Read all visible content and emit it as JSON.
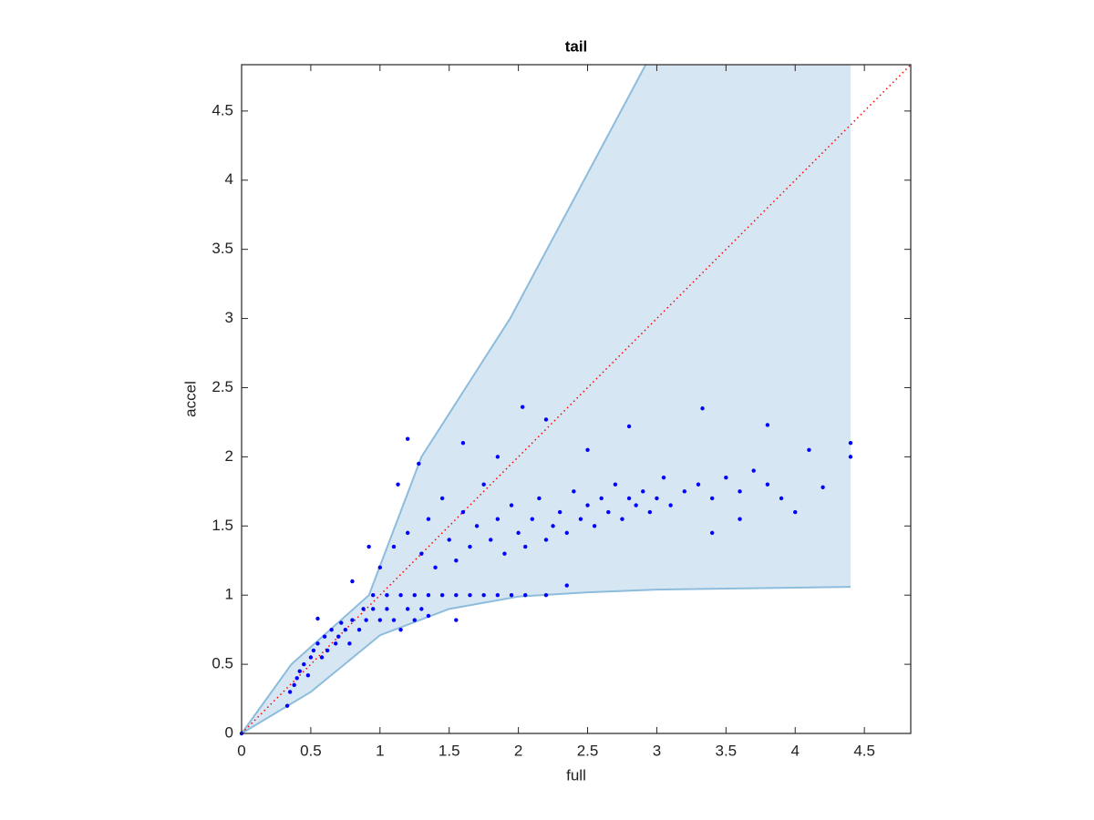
{
  "chart_data": {
    "type": "scatter",
    "title": "tail",
    "x_label": "full",
    "y_label": "accel",
    "xlim": [
      0,
      4.835
    ],
    "ylim": [
      0,
      4.835
    ],
    "xticks": [
      0,
      0.5,
      1,
      1.5,
      2,
      2.5,
      3,
      3.5,
      4,
      4.5
    ],
    "yticks": [
      0,
      0.5,
      1,
      1.5,
      2,
      2.5,
      3,
      3.5,
      4,
      4.5
    ],
    "color": "#0000ff",
    "x": [
      0,
      0.33,
      0.35,
      0.38,
      0.4,
      0.42,
      0.45,
      0.48,
      0.5,
      0.52,
      0.55,
      0.58,
      0.6,
      0.62,
      0.65,
      0.68,
      0.7,
      0.72,
      0.75,
      0.78,
      0.8,
      0.85,
      0.88,
      0.9,
      0.95,
      1.0,
      1.05,
      1.1,
      1.15,
      1.2,
      1.25,
      1.3,
      0.95,
      1.05,
      1.15,
      1.25,
      1.35,
      1.45,
      1.55,
      1.65,
      1.75,
      1.85,
      1.95,
      2.05,
      2.2,
      2.35,
      1.0,
      1.1,
      1.2,
      1.3,
      1.35,
      1.4,
      1.45,
      1.5,
      1.55,
      1.6,
      1.65,
      1.7,
      1.75,
      1.8,
      1.85,
      1.9,
      1.95,
      2.0,
      2.05,
      2.1,
      2.15,
      2.2,
      2.25,
      2.3,
      2.35,
      2.4,
      2.45,
      2.5,
      2.55,
      2.6,
      2.65,
      2.7,
      2.75,
      2.8,
      2.85,
      2.9,
      2.95,
      3.0,
      3.05,
      3.1,
      3.2,
      3.3,
      3.4,
      3.5,
      3.6,
      3.7,
      3.8,
      3.9,
      4.0,
      4.1,
      4.2,
      4.4,
      4.4,
      1.2,
      1.28,
      1.13,
      2.03,
      2.2,
      3.33,
      3.8,
      2.8,
      1.6,
      1.85,
      2.5,
      0.92,
      0.8,
      0.55,
      3.6,
      3.4,
      1.35,
      1.55
    ],
    "values": [
      0,
      0.2,
      0.3,
      0.35,
      0.4,
      0.45,
      0.5,
      0.42,
      0.55,
      0.6,
      0.65,
      0.55,
      0.7,
      0.6,
      0.75,
      0.65,
      0.7,
      0.8,
      0.75,
      0.65,
      0.82,
      0.75,
      0.9,
      0.82,
      0.9,
      0.82,
      0.9,
      0.82,
      0.75,
      0.9,
      0.82,
      0.9,
      1,
      1,
      1,
      1,
      1,
      1,
      1,
      1,
      1,
      1,
      1,
      1,
      1,
      1.07,
      1.2,
      1.35,
      1.45,
      1.3,
      1.55,
      1.2,
      1.7,
      1.4,
      1.25,
      1.6,
      1.35,
      1.5,
      1.8,
      1.4,
      1.55,
      1.3,
      1.65,
      1.45,
      1.35,
      1.55,
      1.7,
      1.4,
      1.5,
      1.6,
      1.45,
      1.75,
      1.55,
      1.65,
      1.5,
      1.7,
      1.6,
      1.8,
      1.55,
      1.7,
      1.65,
      1.75,
      1.6,
      1.7,
      1.85,
      1.65,
      1.75,
      1.8,
      1.7,
      1.85,
      1.75,
      1.9,
      1.8,
      1.7,
      1.6,
      2.05,
      1.78,
      2.1,
      2.0,
      2.13,
      1.95,
      1.8,
      2.36,
      2.27,
      2.35,
      2.23,
      2.22,
      2.1,
      2.0,
      2.05,
      1.35,
      1.1,
      0.83,
      1.55,
      1.45,
      0.85,
      0.82
    ],
    "band": {
      "color": "#d6e7f3",
      "edge_color": "#8dbcdc",
      "upper_x": [
        0,
        0.36,
        0.92,
        1.3,
        1.94,
        2.92,
        4.4
      ],
      "upper_y": [
        0,
        0.5,
        1.0,
        2.0,
        3.0,
        4.835,
        4.835
      ],
      "lower_x": [
        0,
        0.5,
        1.0,
        1.5,
        2.0,
        2.5,
        3.0,
        4.4
      ],
      "lower_y": [
        0,
        0.3,
        0.71,
        0.9,
        0.99,
        1.02,
        1.04,
        1.06
      ]
    },
    "reference_line": {
      "color": "#ff0000",
      "x": [
        0,
        4.835
      ],
      "y": [
        0,
        4.835
      ]
    }
  }
}
